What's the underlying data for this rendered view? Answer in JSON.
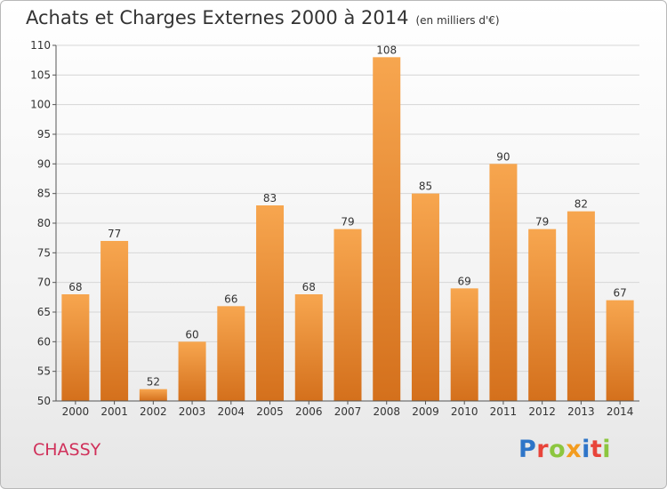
{
  "header": {
    "title": "Achats et Charges Externes 2000 à 2014",
    "unit": "(en milliers d'€)"
  },
  "footer": {
    "commune": "CHASSY",
    "logo_text": "Proxiti",
    "logo_colors": [
      "#2e75c8",
      "#e8443a",
      "#8cc63f",
      "#f39c1f",
      "#2e75c8",
      "#e8443a",
      "#8cc63f"
    ]
  },
  "colors": {
    "bar_top": "#f7a64f",
    "bar_bottom": "#d4701c",
    "commune": "#d0305a"
  },
  "chart_data": {
    "type": "bar",
    "categories": [
      "2000",
      "2001",
      "2002",
      "2003",
      "2004",
      "2005",
      "2006",
      "2007",
      "2008",
      "2009",
      "2010",
      "2011",
      "2012",
      "2013",
      "2014"
    ],
    "values": [
      68,
      77,
      52,
      60,
      66,
      83,
      68,
      79,
      108,
      85,
      69,
      90,
      79,
      82,
      67
    ],
    "ylim": [
      50,
      110
    ],
    "yticks": [
      50,
      55,
      60,
      65,
      70,
      75,
      80,
      85,
      90,
      95,
      100,
      105,
      110
    ],
    "grid": true
  }
}
